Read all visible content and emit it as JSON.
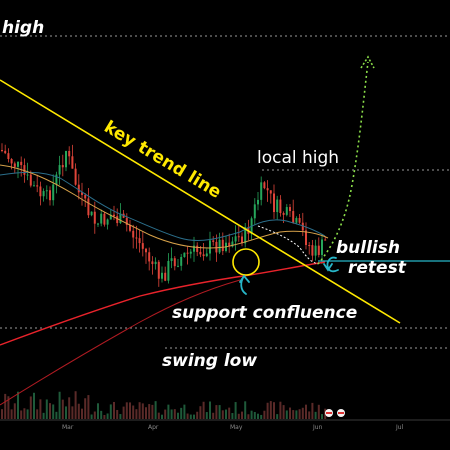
{
  "chart_data": {
    "type": "candlestick",
    "title": "",
    "x_ticks": [
      "Mar",
      "Apr",
      "May",
      "Jun",
      "Jul"
    ],
    "annotations": {
      "top_left": "high",
      "trend_line": "key trend line",
      "local_high": "local high",
      "bullish": "bullish",
      "retest": "retest",
      "support": "support confluence",
      "swing_low": "swing low"
    },
    "levels": [
      {
        "name": "high",
        "style": "dotted",
        "color": "#9a9a9a"
      },
      {
        "name": "local high",
        "style": "dotted",
        "color": "#9a9a9a"
      },
      {
        "name": "retest",
        "style": "solid",
        "color": "#27b6c8"
      },
      {
        "name": "swing low",
        "style": "dotted",
        "color": "#9a9a9a"
      }
    ],
    "colors": {
      "background": "#000000",
      "bull_candle": "#26a65b",
      "bear_candle": "#e0453a",
      "trend_line": "#ffe900",
      "ma_long": "#e8232b",
      "ma_mid": "#d7a24a",
      "ma_short": "#2b6f8c",
      "projection": "#8ce04a",
      "marker": "#27b6c8"
    }
  }
}
